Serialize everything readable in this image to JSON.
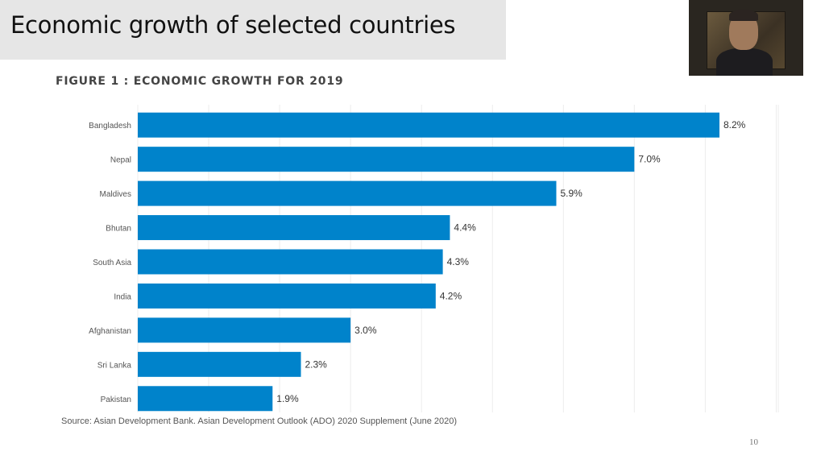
{
  "slide": {
    "title": "Economic growth of selected countries",
    "figure_heading": "FIGURE 1 : ECONOMIC GROWTH FOR 2019",
    "source": "Source: Asian Development Bank. Asian Development Outlook (ADO) 2020 Supplement (June 2020)",
    "page_number": "10"
  },
  "webcam": {
    "icon": "presenter-video-thumbnail"
  },
  "chart_data": {
    "type": "bar",
    "orientation": "horizontal",
    "categories": [
      "Bangladesh",
      "Nepal",
      "Maldives",
      "Bhutan",
      "South Asia",
      "India",
      "Afghanistan",
      "Sri Lanka",
      "Pakistan"
    ],
    "values": [
      8.2,
      7.0,
      5.9,
      4.4,
      4.3,
      4.2,
      3.0,
      2.3,
      1.9
    ],
    "data_labels": [
      "8.2%",
      "7.0%",
      "5.9%",
      "4.4%",
      "4.3%",
      "4.2%",
      "3.0%",
      "2.3%",
      "1.9%"
    ],
    "xlim": [
      0,
      9
    ],
    "grid": true,
    "bar_color": "#0083cb"
  }
}
